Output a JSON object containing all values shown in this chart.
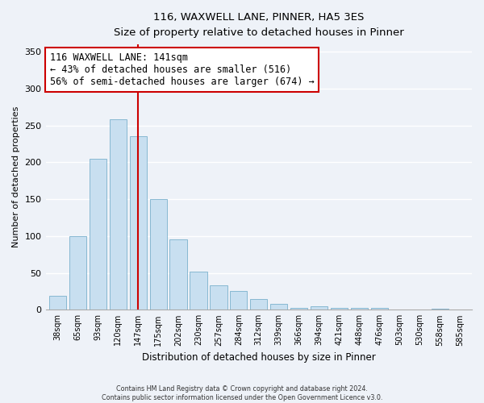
{
  "title": "116, WAXWELL LANE, PINNER, HA5 3ES",
  "subtitle": "Size of property relative to detached houses in Pinner",
  "xlabel": "Distribution of detached houses by size in Pinner",
  "ylabel": "Number of detached properties",
  "bar_labels": [
    "38sqm",
    "65sqm",
    "93sqm",
    "120sqm",
    "147sqm",
    "175sqm",
    "202sqm",
    "230sqm",
    "257sqm",
    "284sqm",
    "312sqm",
    "339sqm",
    "366sqm",
    "394sqm",
    "421sqm",
    "448sqm",
    "476sqm",
    "503sqm",
    "530sqm",
    "558sqm",
    "585sqm"
  ],
  "bar_values": [
    19,
    100,
    205,
    258,
    236,
    150,
    95,
    52,
    33,
    26,
    15,
    8,
    2,
    5,
    2,
    3,
    2,
    0,
    0,
    1,
    0
  ],
  "bar_color": "#c8dff0",
  "bar_edge_color": "#7ab0cc",
  "vline_x": 4,
  "vline_color": "#cc0000",
  "annotation_text": "116 WAXWELL LANE: 141sqm\n← 43% of detached houses are smaller (516)\n56% of semi-detached houses are larger (674) →",
  "annotation_box_color": "#ffffff",
  "annotation_box_edge_color": "#cc0000",
  "ylim": [
    0,
    360
  ],
  "yticks": [
    0,
    50,
    100,
    150,
    200,
    250,
    300,
    350
  ],
  "footer_text": "Contains HM Land Registry data © Crown copyright and database right 2024.\nContains public sector information licensed under the Open Government Licence v3.0.",
  "bg_color": "#eef2f8"
}
